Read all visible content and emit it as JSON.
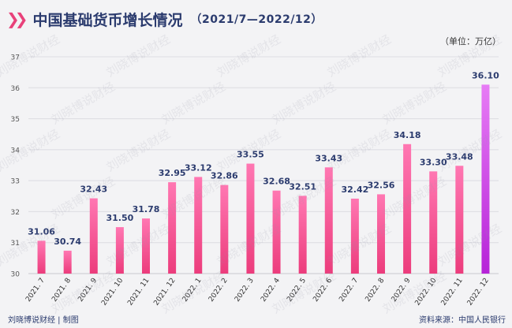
{
  "title": {
    "main": "中国基础货币增长情况",
    "sub": "（2021/7—2022/12）"
  },
  "unit": "（单位：万亿）",
  "footer": {
    "left": "刘晓博说财经 | 制图",
    "right": "资料来源：中国人民银行"
  },
  "watermark": "刘晓博说财经",
  "colors": {
    "bar_top": "#ff77b2",
    "bar_bottom": "#ec3c7c",
    "last_bar_top": "#e77cf5",
    "last_bar_bottom": "#b623d8",
    "title": "#2b3b6e",
    "accent": "#e8417a"
  },
  "chart_data": {
    "type": "bar",
    "categories": [
      "2021. 7",
      "2021. 8",
      "2021. 9",
      "2021. 10",
      "2021. 11",
      "2021. 12",
      "2022. 1",
      "2022. 2",
      "2022. 3",
      "2022. 4",
      "2022. 5",
      "2022. 6",
      "2022. 7",
      "2022. 8",
      "2022. 9",
      "2022. 10",
      "2022. 11",
      "2022. 12"
    ],
    "values": [
      31.06,
      30.74,
      32.43,
      31.5,
      31.78,
      32.95,
      33.12,
      32.86,
      33.55,
      32.68,
      32.51,
      33.43,
      32.42,
      32.56,
      34.18,
      33.3,
      33.48,
      36.1
    ],
    "value_labels": [
      "31.06",
      "30.74",
      "32.43",
      "31.50",
      "31.78",
      "32.95",
      "33.12",
      "32.86",
      "33.55",
      "32.68",
      "32.51",
      "33.43",
      "32.42",
      "32.56",
      "34.18",
      "33.30",
      "33.48",
      "36.10"
    ],
    "ylim": [
      30,
      37
    ],
    "yticks": [
      30,
      31,
      32,
      33,
      34,
      35,
      36,
      37
    ],
    "grid": true,
    "title": "中国基础货币增长情况",
    "ylabel": "万亿",
    "xlabel": ""
  }
}
